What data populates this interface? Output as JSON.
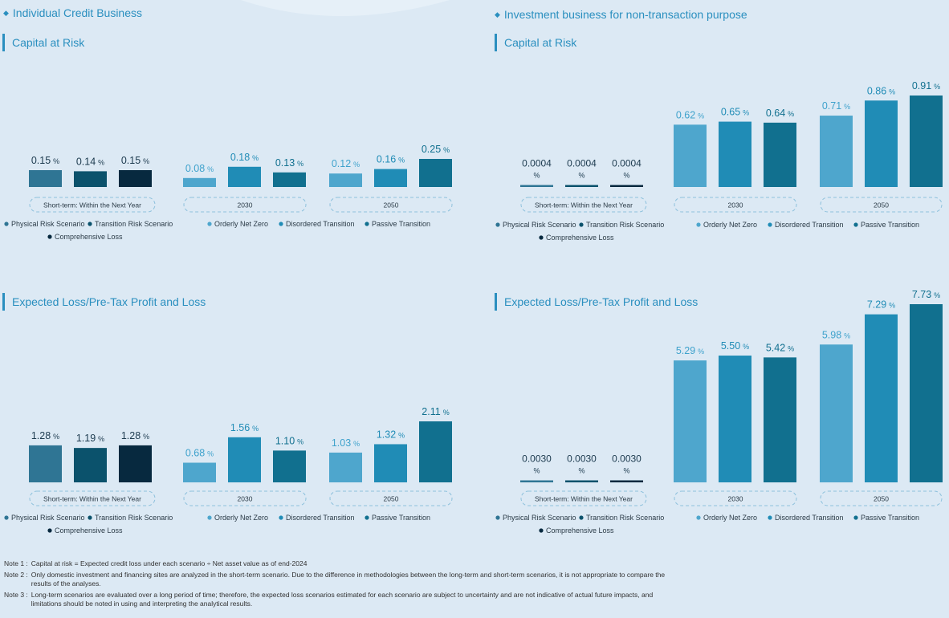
{
  "sections": {
    "left": "Individual Credit Business",
    "right": "Investment business for non-transaction purpose"
  },
  "colors": {
    "physical": "#2f7594",
    "transition": "#0b526c",
    "comprehensive": "#07293f",
    "orderly": "#4ea6cd",
    "disordered": "#208cb6",
    "passive": "#11708f",
    "label_light": "#3fa2cc",
    "label_dark": "#1c3a4e"
  },
  "legend": {
    "physical": "Physical Risk Scenario",
    "transition": "Transition Risk Scenario",
    "comprehensive": "Comprehensive Loss",
    "orderly": "Orderly Net Zero",
    "disordered": "Disordered Transition",
    "passive": "Passive Transition"
  },
  "group_labels": {
    "short": "Short-term: Within the Next Year",
    "y2030": "2030",
    "y2050": "2050"
  },
  "chart_data": [
    {
      "type": "bar",
      "title": "Capital at Risk",
      "section": "Individual Credit Business",
      "unit": "%",
      "ylim": [
        0,
        0.25
      ],
      "groups": [
        {
          "label": "Short-term: Within the Next Year",
          "bars": [
            {
              "series": "Physical Risk Scenario",
              "value": 0.15,
              "label": "0.15"
            },
            {
              "series": "Transition Risk Scenario",
              "value": 0.14,
              "label": "0.14"
            },
            {
              "series": "Comprehensive Loss",
              "value": 0.15,
              "label": "0.15"
            }
          ]
        },
        {
          "label": "2030",
          "bars": [
            {
              "series": "Orderly Net Zero",
              "value": 0.08,
              "label": "0.08"
            },
            {
              "series": "Disordered Transition",
              "value": 0.18,
              "label": "0.18"
            },
            {
              "series": "Passive Transition",
              "value": 0.13,
              "label": "0.13"
            }
          ]
        },
        {
          "label": "2050",
          "bars": [
            {
              "series": "Orderly Net Zero",
              "value": 0.12,
              "label": "0.12"
            },
            {
              "series": "Disordered Transition",
              "value": 0.16,
              "label": "0.16"
            },
            {
              "series": "Passive Transition",
              "value": 0.25,
              "label": "0.25"
            }
          ]
        }
      ]
    },
    {
      "type": "bar",
      "title": "Capital at Risk",
      "section": "Investment business for non-transaction purpose",
      "unit": "%",
      "ylim": [
        0,
        0.91
      ],
      "groups": [
        {
          "label": "Short-term: Within the Next Year",
          "bars": [
            {
              "series": "Physical Risk Scenario",
              "value": 0.0004,
              "label": "0.0004"
            },
            {
              "series": "Transition Risk Scenario",
              "value": 0.0004,
              "label": "0.0004"
            },
            {
              "series": "Comprehensive Loss",
              "value": 0.0004,
              "label": "0.0004"
            }
          ]
        },
        {
          "label": "2030",
          "bars": [
            {
              "series": "Orderly Net Zero",
              "value": 0.62,
              "label": "0.62"
            },
            {
              "series": "Disordered Transition",
              "value": 0.65,
              "label": "0.65"
            },
            {
              "series": "Passive Transition",
              "value": 0.64,
              "label": "0.64"
            }
          ]
        },
        {
          "label": "2050",
          "bars": [
            {
              "series": "Orderly Net Zero",
              "value": 0.71,
              "label": "0.71"
            },
            {
              "series": "Disordered Transition",
              "value": 0.86,
              "label": "0.86"
            },
            {
              "series": "Passive Transition",
              "value": 0.91,
              "label": "0.91"
            }
          ]
        }
      ]
    },
    {
      "type": "bar",
      "title": "Expected Loss/Pre-Tax Profit and Loss",
      "section": "Individual Credit Business",
      "unit": "%",
      "ylim": [
        0,
        2.11
      ],
      "groups": [
        {
          "label": "Short-term: Within the Next Year",
          "bars": [
            {
              "series": "Physical Risk Scenario",
              "value": 1.28,
              "label": "1.28"
            },
            {
              "series": "Transition Risk Scenario",
              "value": 1.19,
              "label": "1.19"
            },
            {
              "series": "Comprehensive Loss",
              "value": 1.28,
              "label": "1.28"
            }
          ]
        },
        {
          "label": "2030",
          "bars": [
            {
              "series": "Orderly Net Zero",
              "value": 0.68,
              "label": "0.68"
            },
            {
              "series": "Disordered Transition",
              "value": 1.56,
              "label": "1.56"
            },
            {
              "series": "Passive Transition",
              "value": 1.1,
              "label": "1.10"
            }
          ]
        },
        {
          "label": "2050",
          "bars": [
            {
              "series": "Orderly Net Zero",
              "value": 1.03,
              "label": "1.03"
            },
            {
              "series": "Disordered Transition",
              "value": 1.32,
              "label": "1.32"
            },
            {
              "series": "Passive Transition",
              "value": 2.11,
              "label": "2.11"
            }
          ]
        }
      ]
    },
    {
      "type": "bar",
      "title": "Expected Loss/Pre-Tax Profit and Loss",
      "section": "Investment business for non-transaction purpose",
      "unit": "%",
      "ylim": [
        0,
        7.73
      ],
      "groups": [
        {
          "label": "Short-term: Within the Next Year",
          "bars": [
            {
              "series": "Physical Risk Scenario",
              "value": 0.003,
              "label": "0.0030"
            },
            {
              "series": "Transition Risk Scenario",
              "value": 0.003,
              "label": "0.0030"
            },
            {
              "series": "Comprehensive Loss",
              "value": 0.003,
              "label": "0.0030"
            }
          ]
        },
        {
          "label": "2030",
          "bars": [
            {
              "series": "Orderly Net Zero",
              "value": 5.29,
              "label": "5.29"
            },
            {
              "series": "Disordered Transition",
              "value": 5.5,
              "label": "5.50"
            },
            {
              "series": "Passive Transition",
              "value": 5.42,
              "label": "5.42"
            }
          ]
        },
        {
          "label": "2050",
          "bars": [
            {
              "series": "Orderly Net Zero",
              "value": 5.98,
              "label": "5.98"
            },
            {
              "series": "Disordered Transition",
              "value": 7.29,
              "label": "7.29"
            },
            {
              "series": "Passive Transition",
              "value": 7.73,
              "label": "7.73"
            }
          ]
        }
      ]
    }
  ],
  "notes": [
    {
      "label": "Note 1 :",
      "text": "Capital at risk = Expected credit loss under each scenario ÷ Net asset value as of end-2024"
    },
    {
      "label": "Note 2 :",
      "text": "Only domestic investment and financing sites are analyzed in the short-term scenario. Due to the difference in methodologies between the long-term and short-term scenarios, it is not appropriate to compare the results of the analyses."
    },
    {
      "label": "Note 3 :",
      "text": "Long-term scenarios are evaluated over a long period of time; therefore, the expected loss scenarios estimated for each scenario are subject to uncertainty and are not indicative of actual future impacts, and limitations should be noted in using and interpreting the analytical results."
    }
  ]
}
